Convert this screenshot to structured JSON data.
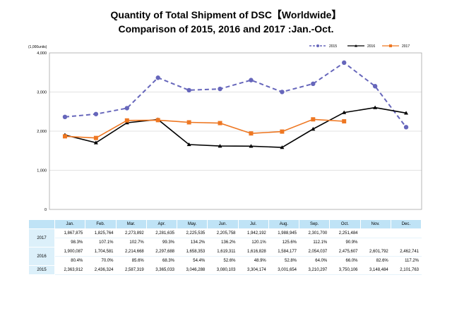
{
  "chart_data": {
    "type": "line",
    "title": "Quantity of Total Shipment of DSC【Worldwide】",
    "subtitle": "Comparison of 2015, 2016 and 2017 :Jan.-Oct.",
    "unit_label": "(1,000units)",
    "ylim": [
      0,
      4000
    ],
    "yticks": [
      0,
      1000,
      2000,
      3000,
      4000
    ],
    "ytick_labels": [
      "0",
      "1,000",
      "2,000",
      "3,000",
      "4,000"
    ],
    "legend_position": "top-right",
    "grid": "horizontal",
    "categories": [
      "Jan.",
      "Feb.",
      "Mar.",
      "Apr.",
      "May.",
      "Jun.",
      "Jul.",
      "Aug.",
      "Sep.",
      "Oct.",
      "Nov.",
      "Dec."
    ],
    "series": [
      {
        "name": "2015",
        "color": "#6666bb",
        "style": "dashed",
        "marker": "circle",
        "values": [
          2363.912,
          2436.324,
          2587.319,
          3365.033,
          3046.288,
          3080.103,
          3304.174,
          3001.654,
          3210.297,
          3750.106,
          3148.484,
          2101.763
        ]
      },
      {
        "name": "2016",
        "color": "#000000",
        "style": "solid",
        "marker": "triangle",
        "values": [
          1900.087,
          1704.581,
          2214.668,
          2297.688,
          1658.353,
          1619.311,
          1616.828,
          1584.177,
          2054.037,
          2475.607,
          2601.792,
          2462.741
        ]
      },
      {
        "name": "2017",
        "color": "#ee7722",
        "style": "solid",
        "marker": "square",
        "values": [
          1867.875,
          1825.764,
          2273.892,
          2281.635,
          2225.535,
          2205.758,
          1942.192,
          1988.945,
          2301.7,
          2251.484,
          null,
          null
        ]
      }
    ]
  },
  "table": {
    "months": [
      "Jan.",
      "Feb.",
      "Mar.",
      "Apr.",
      "May.",
      "Jun.",
      "Jul.",
      "Aug.",
      "Sep.",
      "Oct.",
      "Nov.",
      "Dec."
    ],
    "rows": [
      {
        "year": "2017",
        "values": [
          "1,867,875",
          "1,825,764",
          "2,273,892",
          "2,281,635",
          "2,225,535",
          "2,205,758",
          "1,942,192",
          "1,988,945",
          "2,301,700",
          "2,251,484",
          "",
          ""
        ],
        "percents": [
          "98.3%",
          "107.1%",
          "102.7%",
          "99.3%",
          "134.2%",
          "136.2%",
          "120.1%",
          "125.6%",
          "112.1%",
          "90.9%",
          "",
          ""
        ]
      },
      {
        "year": "2016",
        "values": [
          "1,900,087",
          "1,704,581",
          "2,214,668",
          "2,297,688",
          "1,658,353",
          "1,619,311",
          "1,616,828",
          "1,584,177",
          "2,054,037",
          "2,475,607",
          "2,601,792",
          "2,462,741"
        ],
        "percents": [
          "80.4%",
          "70.0%",
          "85.6%",
          "68.3%",
          "54.4%",
          "52.6%",
          "48.9%",
          "52.8%",
          "64.0%",
          "66.0%",
          "82.6%",
          "117.2%"
        ]
      },
      {
        "year": "2015",
        "values": [
          "2,363,912",
          "2,436,324",
          "2,587,319",
          "3,365,033",
          "3,046,288",
          "3,080,103",
          "3,304,174",
          "3,001,654",
          "3,210,297",
          "3,750,106",
          "3,148,484",
          "2,101,763"
        ]
      }
    ]
  }
}
